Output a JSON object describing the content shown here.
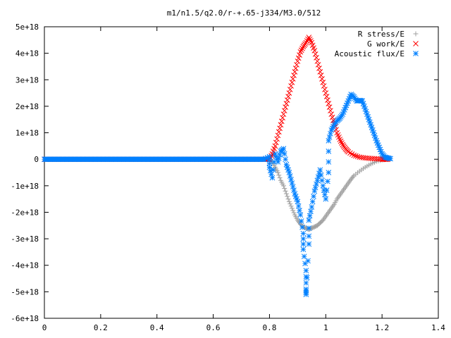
{
  "chart_data": {
    "type": "scatter",
    "title": "m1/n1.5/q2.0/r-+.65-j334/M3.0/512",
    "xlabel": "",
    "ylabel": "",
    "xlim": [
      0,
      1.4
    ],
    "ylim": [
      -6e+18,
      5e+18
    ],
    "x_ticks": [
      0,
      0.2,
      0.4,
      0.6,
      0.8,
      1,
      1.2,
      1.4
    ],
    "x_tick_labels": [
      "0",
      "0.2",
      "0.4",
      "0.6",
      "0.8",
      "1",
      "1.2",
      "1.4"
    ],
    "y_ticks": [
      -6e+18,
      -5e+18,
      -4e+18,
      -3e+18,
      -2e+18,
      -1e+18,
      0,
      1e+18,
      2e+18,
      3e+18,
      4e+18,
      5e+18
    ],
    "y_tick_labels": [
      "-6e+18",
      "-5e+18",
      "-4e+18",
      "-3e+18",
      "-2e+18",
      "-1e+18",
      "0",
      "1e+18",
      "2e+18",
      "3e+18",
      "4e+18",
      "5e+18"
    ],
    "grid": false,
    "legend_position": "top-right",
    "series": [
      {
        "name": "R stress/E",
        "marker": "plus",
        "color": "#a0a0a0",
        "points": [
          [
            0,
            0
          ],
          [
            0.1,
            0
          ],
          [
            0.2,
            0
          ],
          [
            0.3,
            0
          ],
          [
            0.4,
            0
          ],
          [
            0.5,
            0
          ],
          [
            0.6,
            0
          ],
          [
            0.7,
            0
          ],
          [
            0.78,
            0
          ],
          [
            0.8,
            0
          ],
          [
            0.81,
            -1e+17
          ],
          [
            0.82,
            -3e+17
          ],
          [
            0.83,
            -5e+17
          ],
          [
            0.84,
            -8e+17
          ],
          [
            0.85,
            -1e+18
          ],
          [
            0.86,
            -1.3e+18
          ],
          [
            0.87,
            -1.6e+18
          ],
          [
            0.88,
            -1.85e+18
          ],
          [
            0.89,
            -2.1e+18
          ],
          [
            0.9,
            -2.3e+18
          ],
          [
            0.91,
            -2.45e+18
          ],
          [
            0.92,
            -2.55e+18
          ],
          [
            0.93,
            -2.6e+18
          ],
          [
            0.94,
            -2.65e+18
          ],
          [
            0.95,
            -2.6e+18
          ],
          [
            0.96,
            -2.55e+18
          ],
          [
            0.97,
            -2.5e+18
          ],
          [
            0.98,
            -2.4e+18
          ],
          [
            0.99,
            -2.3e+18
          ],
          [
            1.0,
            -2.15e+18
          ],
          [
            1.01,
            -2e+18
          ],
          [
            1.02,
            -1.85e+18
          ],
          [
            1.03,
            -1.7e+18
          ],
          [
            1.04,
            -1.5e+18
          ],
          [
            1.05,
            -1.35e+18
          ],
          [
            1.06,
            -1.2e+18
          ],
          [
            1.07,
            -1.05e+18
          ],
          [
            1.08,
            -9e+17
          ],
          [
            1.09,
            -7.5e+17
          ],
          [
            1.1,
            -6.2e+17
          ],
          [
            1.12,
            -4.5e+17
          ],
          [
            1.14,
            -3e+17
          ],
          [
            1.16,
            -1.8e+17
          ],
          [
            1.18,
            -8e+16
          ],
          [
            1.2,
            -3e+16
          ],
          [
            1.22,
            0
          ]
        ]
      },
      {
        "name": "G work/E",
        "marker": "cross",
        "color": "#ff0000",
        "points": [
          [
            0,
            0
          ],
          [
            0.1,
            0
          ],
          [
            0.2,
            0
          ],
          [
            0.3,
            0
          ],
          [
            0.4,
            0
          ],
          [
            0.5,
            0
          ],
          [
            0.6,
            0
          ],
          [
            0.7,
            0
          ],
          [
            0.78,
            0
          ],
          [
            0.8,
            0
          ],
          [
            0.81,
            2e+17
          ],
          [
            0.82,
            5e+17
          ],
          [
            0.83,
            9e+17
          ],
          [
            0.84,
            1.3e+18
          ],
          [
            0.85,
            1.7e+18
          ],
          [
            0.86,
            2.1e+18
          ],
          [
            0.87,
            2.5e+18
          ],
          [
            0.88,
            2.9e+18
          ],
          [
            0.89,
            3.3e+18
          ],
          [
            0.9,
            3.7e+18
          ],
          [
            0.91,
            4.05e+18
          ],
          [
            0.92,
            4.25e+18
          ],
          [
            0.93,
            4.4e+18
          ],
          [
            0.94,
            4.6e+18
          ],
          [
            0.95,
            4.4e+18
          ],
          [
            0.96,
            4.1e+18
          ],
          [
            0.97,
            3.7e+18
          ],
          [
            0.98,
            3.3e+18
          ],
          [
            0.99,
            2.9e+18
          ],
          [
            1.0,
            2.5e+18
          ],
          [
            1.01,
            2.1e+18
          ],
          [
            1.02,
            1.7e+18
          ],
          [
            1.03,
            1.35e+18
          ],
          [
            1.04,
            1e+18
          ],
          [
            1.05,
            7.5e+17
          ],
          [
            1.06,
            5.5e+17
          ],
          [
            1.07,
            4e+17
          ],
          [
            1.08,
            2.8e+17
          ],
          [
            1.1,
            1.5e+17
          ],
          [
            1.12,
            8e+16
          ],
          [
            1.14,
            5e+16
          ],
          [
            1.16,
            3e+16
          ],
          [
            1.18,
            2e+16
          ],
          [
            1.2,
            0
          ],
          [
            1.22,
            0
          ]
        ]
      },
      {
        "name": "Acoustic flux/E",
        "marker": "star",
        "color": "#0080ff",
        "points": [
          [
            0,
            0
          ],
          [
            0.1,
            0
          ],
          [
            0.2,
            0
          ],
          [
            0.3,
            0
          ],
          [
            0.4,
            0
          ],
          [
            0.5,
            0
          ],
          [
            0.6,
            0
          ],
          [
            0.7,
            0
          ],
          [
            0.78,
            0
          ],
          [
            0.8,
            1e+17
          ],
          [
            0.8,
            -3e+17
          ],
          [
            0.81,
            -7e+17
          ],
          [
            0.82,
            2e+17
          ],
          [
            0.83,
            -1e+17
          ],
          [
            0.84,
            3e+17
          ],
          [
            0.85,
            4e+17
          ],
          [
            0.86,
            -2e+17
          ],
          [
            0.87,
            -5e+17
          ],
          [
            0.88,
            -9e+17
          ],
          [
            0.89,
            -1.3e+18
          ],
          [
            0.9,
            -1.6e+18
          ],
          [
            0.91,
            -2.1e+18
          ],
          [
            0.92,
            -2.8e+18
          ],
          [
            0.92,
            -3.4e+18
          ],
          [
            0.93,
            -4.2e+18
          ],
          [
            0.93,
            -4.9e+18
          ],
          [
            0.93,
            -5.1e+18
          ],
          [
            0.94,
            -3.2e+18
          ],
          [
            0.94,
            -2.3e+18
          ],
          [
            0.95,
            -1.8e+18
          ],
          [
            0.96,
            -1.2e+18
          ],
          [
            0.97,
            -8e+17
          ],
          [
            0.98,
            -4e+17
          ],
          [
            0.99,
            -1e+18
          ],
          [
            1.0,
            -1.5e+18
          ],
          [
            1.01,
            -5e+17
          ],
          [
            1.01,
            7e+17
          ],
          [
            1.02,
            1.1e+18
          ],
          [
            1.03,
            1.3e+18
          ],
          [
            1.04,
            1.45e+18
          ],
          [
            1.05,
            1.55e+18
          ],
          [
            1.06,
            1.7e+18
          ],
          [
            1.07,
            1.95e+18
          ],
          [
            1.08,
            2.2e+18
          ],
          [
            1.09,
            2.45e+18
          ],
          [
            1.1,
            2.35e+18
          ],
          [
            1.11,
            2.2e+18
          ],
          [
            1.12,
            2.22e+18
          ],
          [
            1.13,
            2.2e+18
          ],
          [
            1.14,
            1.9e+18
          ],
          [
            1.15,
            1.6e+18
          ],
          [
            1.16,
            1.3e+18
          ],
          [
            1.17,
            1e+18
          ],
          [
            1.18,
            7e+17
          ],
          [
            1.19,
            4.5e+17
          ],
          [
            1.2,
            2e+17
          ],
          [
            1.21,
            8e+16
          ],
          [
            1.22,
            5e+16
          ],
          [
            1.23,
            2e+16
          ]
        ]
      }
    ]
  }
}
